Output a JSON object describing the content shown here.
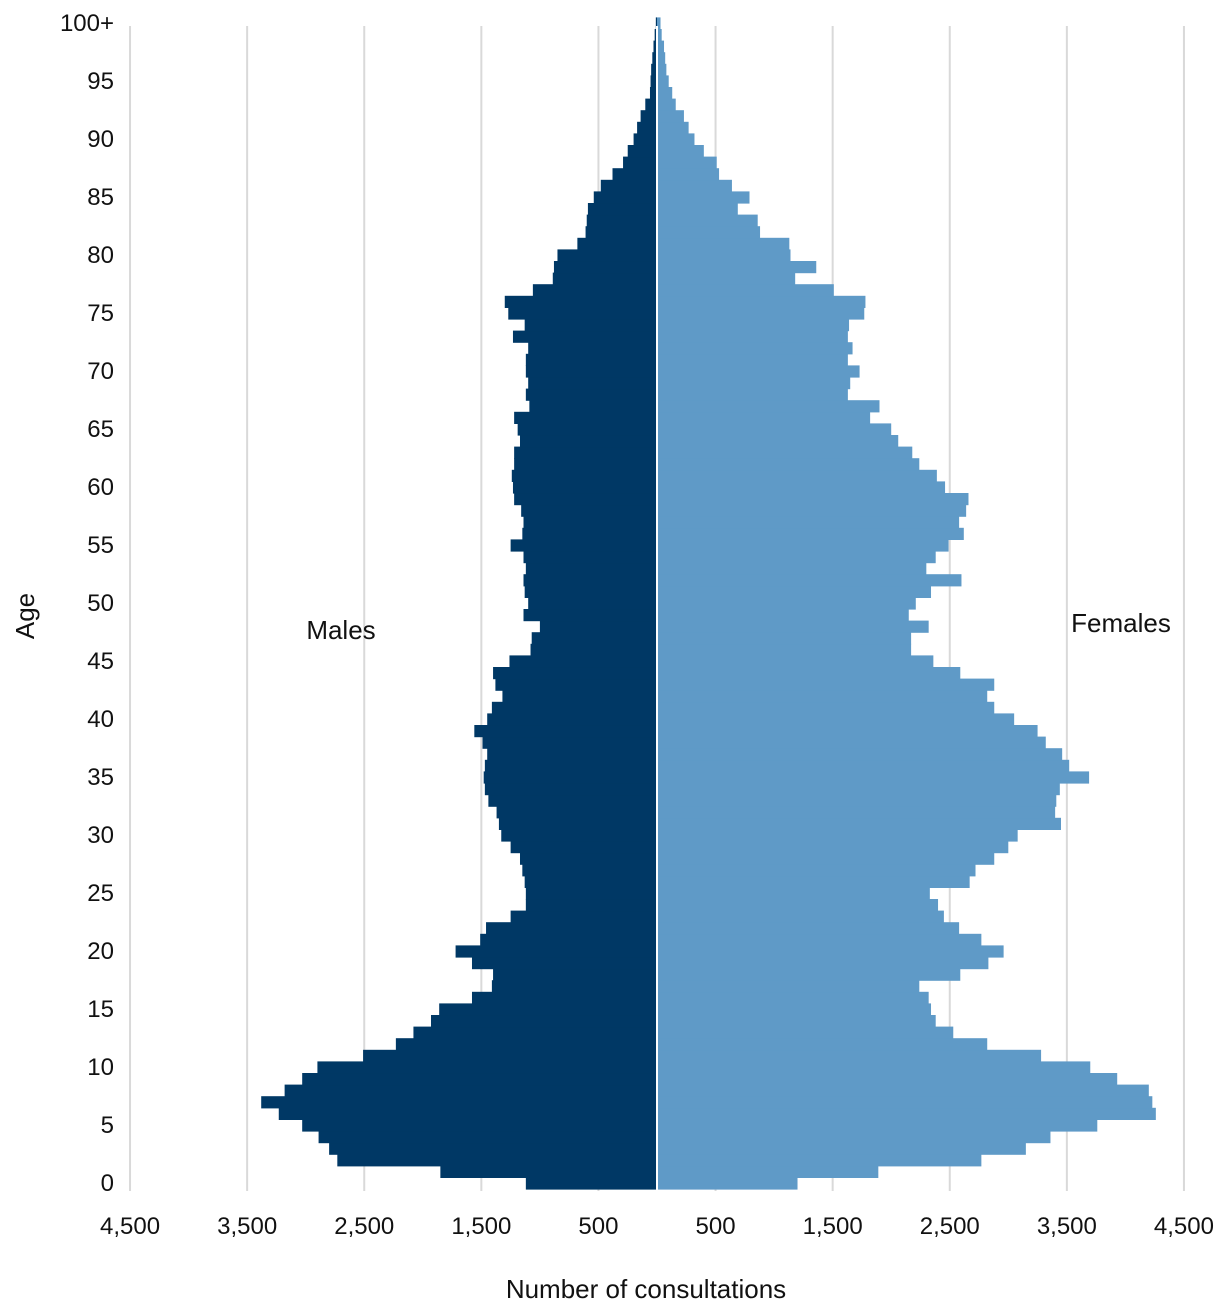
{
  "chart_data": {
    "type": "bar",
    "orientation": "horizontal",
    "subtype": "population-pyramid",
    "title": "",
    "xlabel": "Number of consultations",
    "ylabel": "Age",
    "xlim": [
      -4500,
      4500
    ],
    "x_tick_values": [
      -4500,
      -3500,
      -2500,
      -1500,
      -500,
      500,
      1500,
      2500,
      3500,
      4500
    ],
    "x_tick_labels": [
      "4,500",
      "3,500",
      "2,500",
      "1,500",
      "500",
      "500",
      "1,500",
      "2,500",
      "3,500",
      "4,500"
    ],
    "y_tick_ages": [
      0,
      5,
      10,
      15,
      20,
      25,
      30,
      35,
      40,
      45,
      50,
      55,
      60,
      65,
      70,
      75,
      80,
      85,
      90,
      95,
      100
    ],
    "y_tick_labels": [
      "0",
      "5",
      "10",
      "15",
      "20",
      "25",
      "30",
      "35",
      "40",
      "45",
      "50",
      "55",
      "60",
      "65",
      "70",
      "75",
      "80",
      "85",
      "90",
      "95",
      "100+"
    ],
    "grid": "vertical",
    "categories": [
      "0",
      "1",
      "2",
      "3",
      "4",
      "5",
      "6",
      "7",
      "8",
      "9",
      "10",
      "11",
      "12",
      "13",
      "14",
      "15",
      "16",
      "17",
      "18",
      "19",
      "20",
      "21",
      "22",
      "23",
      "24",
      "25",
      "26",
      "27",
      "28",
      "29",
      "30",
      "31",
      "32",
      "33",
      "34",
      "35",
      "36",
      "37",
      "38",
      "39",
      "40",
      "41",
      "42",
      "43",
      "44",
      "45",
      "46",
      "47",
      "48",
      "49",
      "50",
      "51",
      "52",
      "53",
      "54",
      "55",
      "56",
      "57",
      "58",
      "59",
      "60",
      "61",
      "62",
      "63",
      "64",
      "65",
      "66",
      "67",
      "68",
      "69",
      "70",
      "71",
      "72",
      "73",
      "74",
      "75",
      "76",
      "77",
      "78",
      "79",
      "80",
      "81",
      "82",
      "83",
      "84",
      "85",
      "86",
      "87",
      "88",
      "89",
      "90",
      "91",
      "92",
      "93",
      "94",
      "95",
      "96",
      "97",
      "98",
      "99",
      "100+"
    ],
    "series": [
      {
        "name": "Males",
        "color": "#003865",
        "values": [
          1120,
          1850,
          2730,
          2800,
          2890,
          3030,
          3230,
          3380,
          3180,
          3030,
          2900,
          2510,
          2230,
          2080,
          1930,
          1860,
          1580,
          1410,
          1400,
          1580,
          1720,
          1510,
          1460,
          1250,
          1120,
          1120,
          1130,
          1150,
          1170,
          1250,
          1330,
          1350,
          1370,
          1440,
          1470,
          1480,
          1470,
          1450,
          1490,
          1560,
          1450,
          1410,
          1320,
          1380,
          1400,
          1260,
          1080,
          1070,
          1000,
          1140,
          1100,
          1130,
          1140,
          1120,
          1140,
          1250,
          1150,
          1140,
          1160,
          1220,
          1230,
          1240,
          1220,
          1220,
          1170,
          1190,
          1220,
          1090,
          1120,
          1100,
          1120,
          1120,
          1100,
          1230,
          1130,
          1270,
          1300,
          1060,
          890,
          880,
          850,
          680,
          610,
          600,
          590,
          540,
          480,
          380,
          290,
          250,
          200,
          170,
          140,
          100,
          60,
          55,
          50,
          40,
          30,
          20,
          10
        ]
      },
      {
        "name": "Females",
        "color": "#5f9ac7",
        "values": [
          1200,
          1890,
          2770,
          3150,
          3360,
          3760,
          4260,
          4230,
          4200,
          3930,
          3700,
          3280,
          2820,
          2530,
          2380,
          2340,
          2320,
          2240,
          2590,
          2830,
          2960,
          2770,
          2580,
          2450,
          2400,
          2330,
          2670,
          2720,
          2880,
          3000,
          3080,
          3450,
          3400,
          3410,
          3440,
          3690,
          3520,
          3460,
          3320,
          3250,
          3050,
          2880,
          2820,
          2880,
          2590,
          2360,
          2170,
          2170,
          2320,
          2150,
          2210,
          2340,
          2600,
          2300,
          2380,
          2490,
          2620,
          2580,
          2640,
          2660,
          2460,
          2390,
          2240,
          2180,
          2060,
          2000,
          1820,
          1900,
          1630,
          1650,
          1730,
          1630,
          1670,
          1630,
          1640,
          1770,
          1780,
          1510,
          1180,
          1360,
          1140,
          1130,
          880,
          860,
          690,
          790,
          640,
          530,
          510,
          400,
          320,
          270,
          230,
          160,
          130,
          100,
          80,
          70,
          60,
          40,
          30
        ]
      }
    ],
    "annotations": [
      "Males",
      "Females"
    ]
  }
}
